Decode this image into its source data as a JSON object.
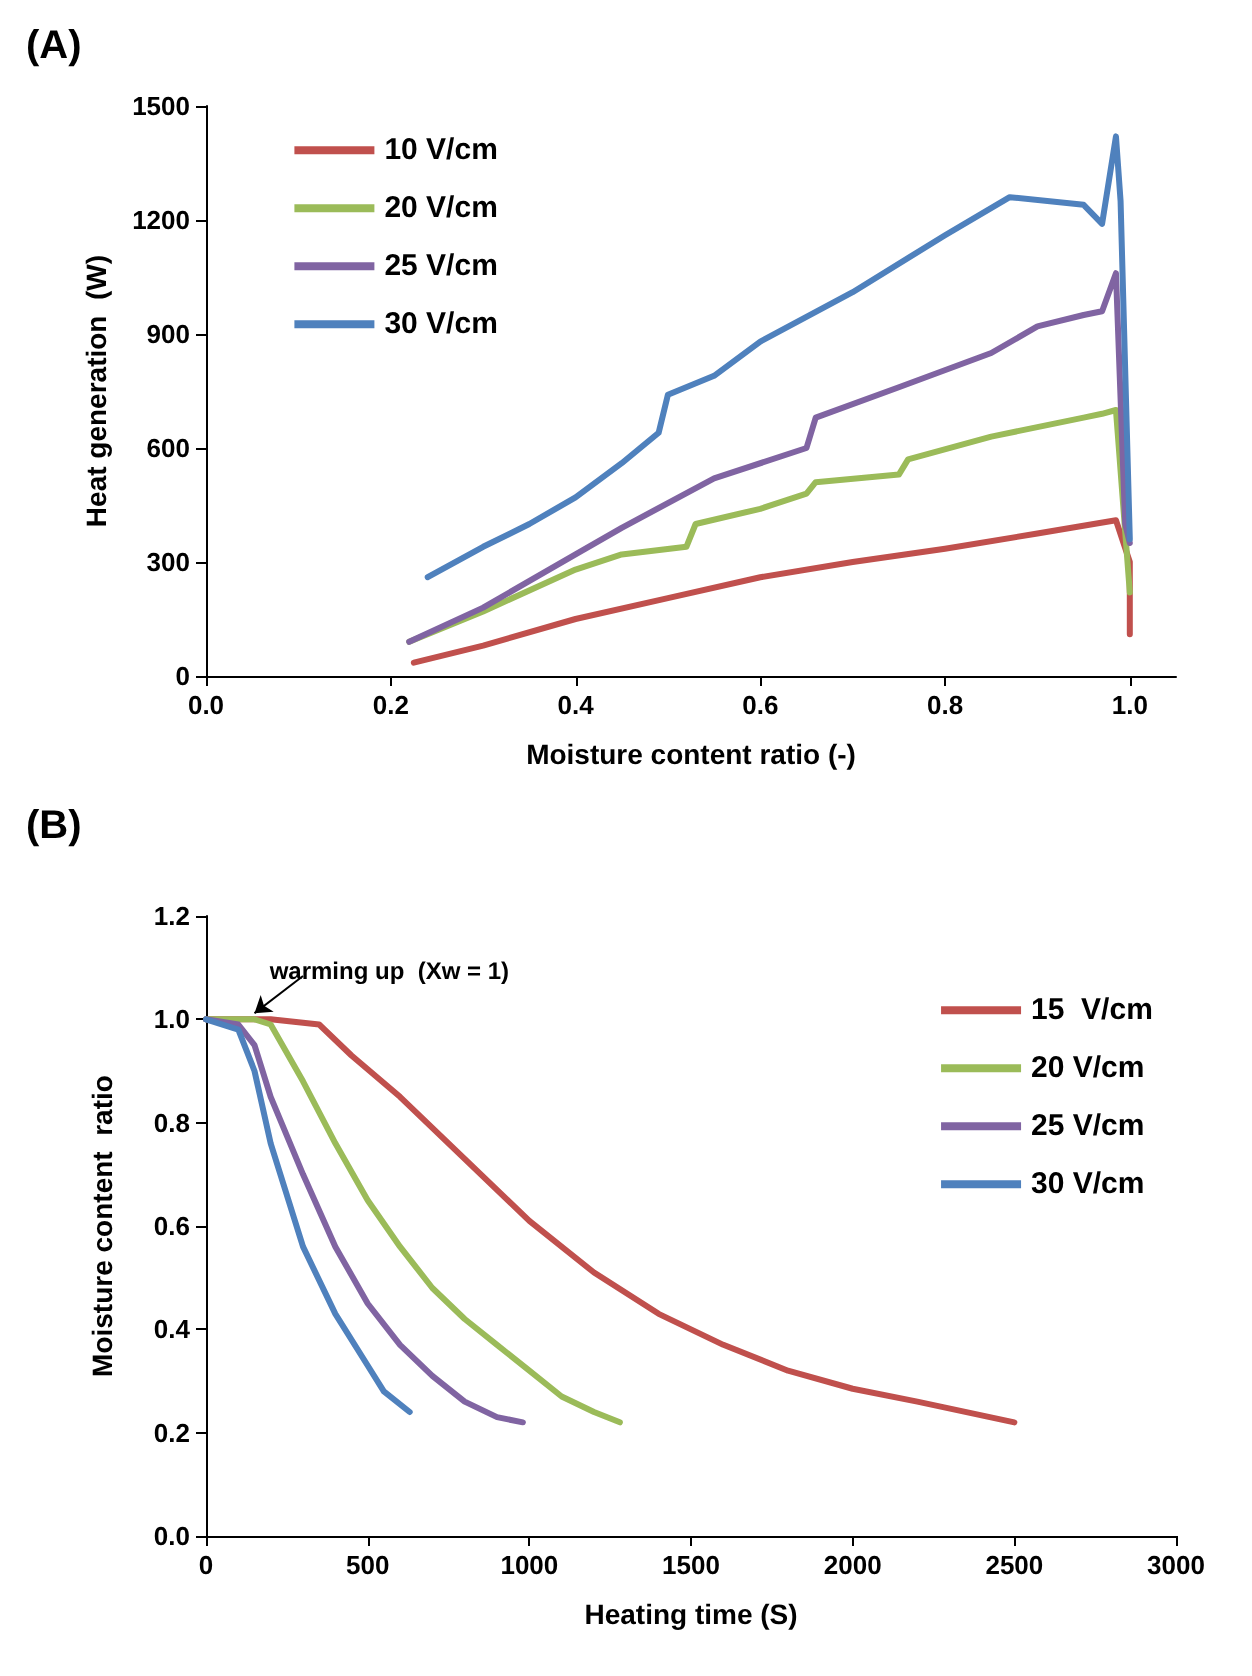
{
  "chart_data": [
    {
      "type": "line",
      "title": "(A)",
      "xlabel": "Moisture content ratio (-)",
      "ylabel": "Heat generation  (W)",
      "xlim": [
        0,
        1.05
      ],
      "ylim": [
        0,
        1500
      ],
      "xticks": [
        {
          "value": 0,
          "label": "0.0"
        },
        {
          "value": 0.2,
          "label": "0.2"
        },
        {
          "value": 0.4,
          "label": "0.4"
        },
        {
          "value": 0.6,
          "label": "0.6"
        },
        {
          "value": 0.8,
          "label": "0.8"
        },
        {
          "value": 1,
          "label": "1.0"
        }
      ],
      "yticks": [
        0,
        300,
        600,
        900,
        1200,
        1500
      ],
      "grid": false,
      "legend": "top left",
      "marker": "none",
      "line_style": "solid",
      "series": [
        {
          "name": "10 V/cm",
          "color": "#c0504d",
          "x": [
            0.225,
            0.3,
            0.4,
            0.5,
            0.6,
            0.7,
            0.8,
            0.9,
            0.985,
            1.0,
            1.0
          ],
          "values": [
            35,
            80,
            150,
            205,
            260,
            300,
            335,
            375,
            410,
            300,
            110
          ]
        },
        {
          "name": "20 V/cm",
          "color": "#9bbb59",
          "x": [
            0.22,
            0.3,
            0.4,
            0.45,
            0.52,
            0.53,
            0.6,
            0.65,
            0.66,
            0.75,
            0.76,
            0.85,
            0.95,
            0.97,
            0.985,
            1.0
          ],
          "values": [
            90,
            170,
            280,
            320,
            340,
            400,
            440,
            480,
            510,
            530,
            570,
            630,
            680,
            690,
            700,
            220
          ]
        },
        {
          "name": "25 V/cm",
          "color": "#8064a2",
          "x": [
            0.22,
            0.3,
            0.4,
            0.45,
            0.55,
            0.65,
            0.66,
            0.75,
            0.85,
            0.9,
            0.95,
            0.97,
            0.985,
            0.995,
            1.0
          ],
          "values": [
            90,
            180,
            320,
            390,
            520,
            600,
            680,
            760,
            850,
            920,
            950,
            960,
            1060,
            400,
            350
          ]
        },
        {
          "name": "30 V/cm",
          "color": "#4f81bd",
          "x": [
            0.24,
            0.3,
            0.35,
            0.4,
            0.45,
            0.49,
            0.5,
            0.55,
            0.6,
            0.7,
            0.8,
            0.87,
            0.95,
            0.97,
            0.985,
            0.99,
            1.0
          ],
          "values": [
            260,
            340,
            400,
            470,
            560,
            640,
            740,
            790,
            880,
            1010,
            1160,
            1260,
            1240,
            1190,
            1420,
            1250,
            360
          ]
        }
      ]
    },
    {
      "type": "line",
      "title": "(B)",
      "xlabel": "Heating time (S)",
      "ylabel": "Moisture content  ratio",
      "xlim": [
        0,
        3000
      ],
      "ylim": [
        0,
        1.2
      ],
      "xticks": [
        0,
        500,
        1000,
        1500,
        2000,
        2500,
        3000
      ],
      "yticks": [
        {
          "value": 0,
          "label": "0.0"
        },
        {
          "value": 0.2,
          "label": "0.2"
        },
        {
          "value": 0.4,
          "label": "0.4"
        },
        {
          "value": 0.6,
          "label": "0.6"
        },
        {
          "value": 0.8,
          "label": "0.8"
        },
        {
          "value": 1,
          "label": "1.0"
        },
        {
          "value": 1.2,
          "label": "1.2"
        }
      ],
      "grid": false,
      "legend": "right",
      "marker": "none",
      "line_style": "solid",
      "annotations": [
        {
          "text": "warming up  (Xw = 1)",
          "x": 150,
          "y": 1.0
        }
      ],
      "series": [
        {
          "name": "15  V/cm",
          "color": "#c0504d",
          "x": [
            0,
            200,
            350,
            450,
            600,
            800,
            1000,
            1200,
            1400,
            1600,
            1800,
            2000,
            2200,
            2500
          ],
          "values": [
            1.0,
            1.0,
            0.99,
            0.93,
            0.85,
            0.73,
            0.61,
            0.51,
            0.43,
            0.37,
            0.32,
            0.285,
            0.26,
            0.22
          ]
        },
        {
          "name": "20 V/cm",
          "color": "#9bbb59",
          "x": [
            0,
            150,
            200,
            300,
            400,
            500,
            600,
            700,
            800,
            900,
            1000,
            1100,
            1200,
            1280
          ],
          "values": [
            1.0,
            1.0,
            0.99,
            0.88,
            0.76,
            0.65,
            0.56,
            0.48,
            0.42,
            0.37,
            0.32,
            0.27,
            0.24,
            0.22
          ]
        },
        {
          "name": "25 V/cm",
          "color": "#8064a2",
          "x": [
            0,
            100,
            150,
            200,
            300,
            400,
            500,
            600,
            700,
            800,
            900,
            980
          ],
          "values": [
            1.0,
            0.99,
            0.95,
            0.85,
            0.7,
            0.56,
            0.45,
            0.37,
            0.31,
            0.26,
            0.23,
            0.22
          ]
        },
        {
          "name": "30 V/cm",
          "color": "#4f81bd",
          "x": [
            0,
            100,
            150,
            200,
            300,
            400,
            500,
            550,
            630
          ],
          "values": [
            1.0,
            0.98,
            0.9,
            0.76,
            0.56,
            0.43,
            0.33,
            0.28,
            0.24
          ]
        }
      ]
    }
  ]
}
